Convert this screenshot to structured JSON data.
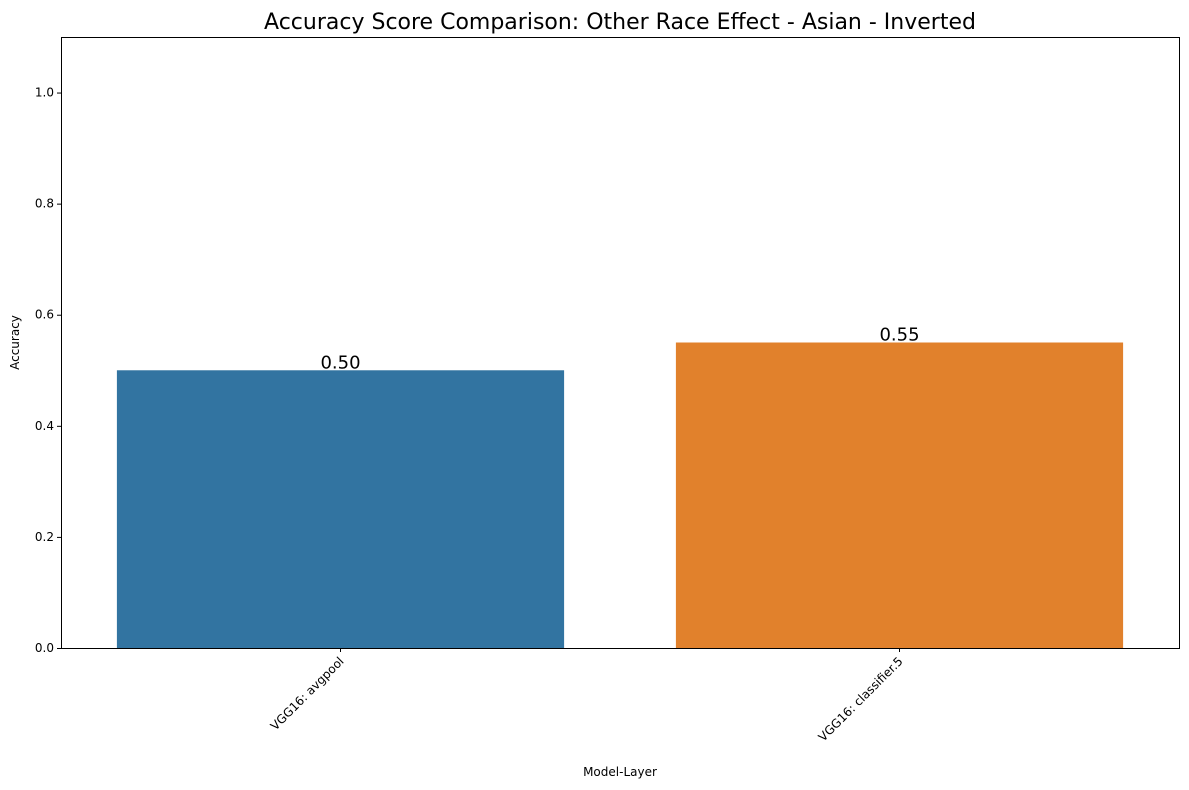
{
  "chart_data": {
    "type": "bar",
    "title": "Accuracy Score Comparison: Other Race Effect - Asian - Inverted",
    "xlabel": "Model-Layer",
    "ylabel": "Accuracy",
    "categories": [
      "VGG16: avgpool",
      "VGG16: classifier.5"
    ],
    "values": [
      0.5,
      0.55
    ],
    "data_labels": [
      "0.50",
      "0.55"
    ],
    "colors": [
      "#3274a1",
      "#e1812c"
    ],
    "ylim": [
      0,
      1.1
    ],
    "yticks": [
      0.0,
      0.2,
      0.4,
      0.6,
      0.8,
      1.0
    ],
    "ytick_labels": [
      "0.0",
      "0.2",
      "0.4",
      "0.6",
      "0.8",
      "1.0"
    ],
    "grid": false,
    "legend": "none"
  }
}
